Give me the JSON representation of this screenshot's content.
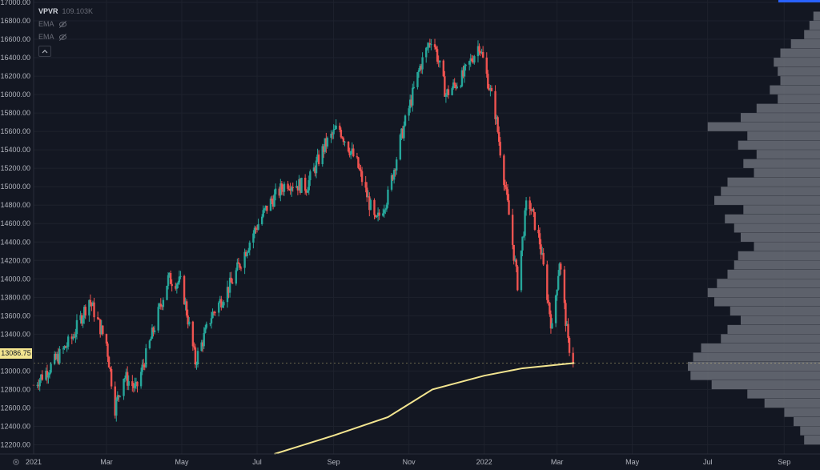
{
  "legend": {
    "indicator_name": "VPVR",
    "indicator_value": "109.103K",
    "ema1_label": "EMA",
    "ema2_label": "EMA"
  },
  "price_tag": "13086.75",
  "icons": {
    "eye_hidden": "eye-crossed-icon",
    "collapse": "chevron-up-icon",
    "settings": "gear-icon"
  },
  "colors": {
    "up": "#26a69a",
    "down": "#ef5350",
    "ema": "#f3e590",
    "volume_profile": "#6b6f78",
    "background": "#131722"
  },
  "chart_data": {
    "type": "candlestick",
    "y_axis": {
      "ylim": [
        12100,
        17000
      ],
      "ticks": [
        "12200.00",
        "12400.00",
        "12600.00",
        "12800.00",
        "13000.00",
        "13200.00",
        "13400.00",
        "13600.00",
        "13800.00",
        "14000.00",
        "14200.00",
        "14400.00",
        "14600.00",
        "14800.00",
        "15000.00",
        "15200.00",
        "15400.00",
        "15600.00",
        "15800.00",
        "16000.00",
        "16200.00",
        "16400.00",
        "16600.00",
        "16800.00",
        "17000.00"
      ]
    },
    "x_axis": {
      "ticks": [
        "2021",
        "Mar",
        "May",
        "Jul",
        "Sep",
        "Nov",
        "2022",
        "Mar",
        "May",
        "Jul",
        "Sep"
      ],
      "tick_dates": [
        "2021-01-01",
        "2021-03-01",
        "2021-05-01",
        "2021-07-01",
        "2021-09-01",
        "2021-11-01",
        "2022-01-01",
        "2022-03-01",
        "2022-05-01",
        "2022-07-01",
        "2022-09-01"
      ],
      "range": [
        "2021-01-01",
        "2022-09-30"
      ]
    },
    "price_path": [
      {
        "date": "2021-01-01",
        "close": 12850
      },
      {
        "date": "2021-01-15",
        "close": 13050
      },
      {
        "date": "2021-02-01",
        "close": 13350
      },
      {
        "date": "2021-02-15",
        "close": 13780
      },
      {
        "date": "2021-03-01",
        "close": 13300
      },
      {
        "date": "2021-03-08",
        "close": 12600
      },
      {
        "date": "2021-03-15",
        "close": 12950
      },
      {
        "date": "2021-03-25",
        "close": 12800
      },
      {
        "date": "2021-04-05",
        "close": 13300
      },
      {
        "date": "2021-04-20",
        "close": 14000
      },
      {
        "date": "2021-05-01",
        "close": 13950
      },
      {
        "date": "2021-05-12",
        "close": 13100
      },
      {
        "date": "2021-05-25",
        "close": 13600
      },
      {
        "date": "2021-06-10",
        "close": 13950
      },
      {
        "date": "2021-06-28",
        "close": 14500
      },
      {
        "date": "2021-07-10",
        "close": 14800
      },
      {
        "date": "2021-07-25",
        "close": 15050
      },
      {
        "date": "2021-08-10",
        "close": 15000
      },
      {
        "date": "2021-08-25",
        "close": 15450
      },
      {
        "date": "2021-09-05",
        "close": 15650
      },
      {
        "date": "2021-09-20",
        "close": 15250
      },
      {
        "date": "2021-10-05",
        "close": 14600
      },
      {
        "date": "2021-10-15",
        "close": 14900
      },
      {
        "date": "2021-10-25",
        "close": 15500
      },
      {
        "date": "2021-11-10",
        "close": 16300
      },
      {
        "date": "2021-11-20",
        "close": 16650
      },
      {
        "date": "2021-12-01",
        "close": 16000
      },
      {
        "date": "2021-12-15",
        "close": 16200
      },
      {
        "date": "2021-12-28",
        "close": 16550
      },
      {
        "date": "2022-01-10",
        "close": 15800
      },
      {
        "date": "2022-01-20",
        "close": 14800
      },
      {
        "date": "2022-01-28",
        "close": 13950
      },
      {
        "date": "2022-02-05",
        "close": 14900
      },
      {
        "date": "2022-02-15",
        "close": 14400
      },
      {
        "date": "2022-02-25",
        "close": 13450
      },
      {
        "date": "2022-03-03",
        "close": 14200
      },
      {
        "date": "2022-03-10",
        "close": 13300
      },
      {
        "date": "2022-03-15",
        "close": 13087
      }
    ],
    "ema_path": [
      {
        "date": "2021-07-15",
        "value": 12100
      },
      {
        "date": "2021-09-01",
        "value": 12300
      },
      {
        "date": "2021-10-15",
        "value": 12500
      },
      {
        "date": "2021-11-20",
        "value": 12800
      },
      {
        "date": "2022-01-01",
        "value": 12950
      },
      {
        "date": "2022-02-01",
        "value": 13030
      },
      {
        "date": "2022-03-15",
        "value": 13087
      }
    ],
    "volume_profile": {
      "price_levels": [
        12200,
        12300,
        12400,
        12500,
        12600,
        12700,
        12800,
        12900,
        13000,
        13100,
        13200,
        13300,
        13400,
        13500,
        13600,
        13700,
        13800,
        13900,
        14000,
        14100,
        14200,
        14300,
        14400,
        14500,
        14600,
        14700,
        14800,
        14900,
        15000,
        15100,
        15200,
        15300,
        15400,
        15500,
        15600,
        15700,
        15800,
        15900,
        16000,
        16100,
        16200,
        16300,
        16400,
        16500,
        16600,
        16700,
        16800
      ],
      "relative_volume": [
        0.12,
        0.15,
        0.2,
        0.27,
        0.42,
        0.55,
        0.82,
        0.98,
        1.0,
        0.96,
        0.9,
        0.75,
        0.7,
        0.6,
        0.68,
        0.8,
        0.85,
        0.78,
        0.7,
        0.65,
        0.62,
        0.5,
        0.6,
        0.65,
        0.72,
        0.58,
        0.8,
        0.75,
        0.7,
        0.5,
        0.58,
        0.48,
        0.62,
        0.55,
        0.85,
        0.6,
        0.48,
        0.32,
        0.38,
        0.3,
        0.32,
        0.35,
        0.3,
        0.22,
        0.12,
        0.08,
        0.05
      ]
    }
  }
}
